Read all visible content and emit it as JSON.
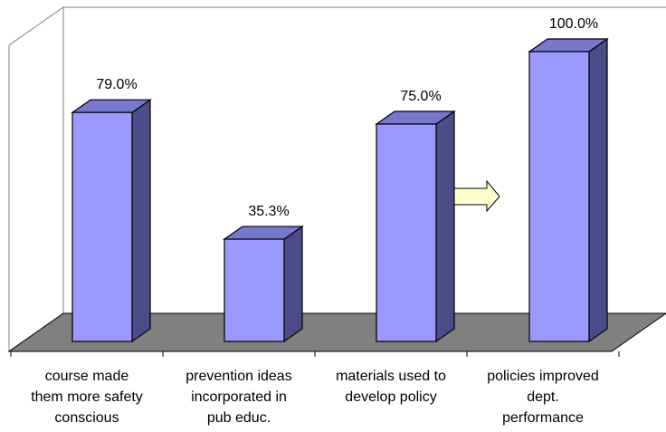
{
  "chart_data": {
    "type": "bar",
    "categories": [
      [
        "course made",
        "them more safety",
        "conscious"
      ],
      [
        "prevention ideas",
        "incorporated in",
        "pub educ."
      ],
      [
        "materials used to",
        "develop policy"
      ],
      [
        "policies improved",
        "dept.",
        "performance"
      ]
    ],
    "values": [
      79.0,
      35.3,
      75.0,
      100.0
    ],
    "data_labels": [
      "79.0%",
      "35.3%",
      "75.0%",
      "100.0%"
    ],
    "ylim": [
      0,
      100
    ],
    "grid": false,
    "legend": "none",
    "style": "3d-column",
    "colors": {
      "bar_front": "#9999ff",
      "bar_top": "#7777cc",
      "bar_side": "#4c4c8a",
      "floor": "#808080",
      "arrow_fill": "#ffffcc"
    },
    "annotations": [
      {
        "type": "arrow-icon",
        "direction": "right",
        "between_categories": [
          2,
          3
        ]
      }
    ]
  }
}
